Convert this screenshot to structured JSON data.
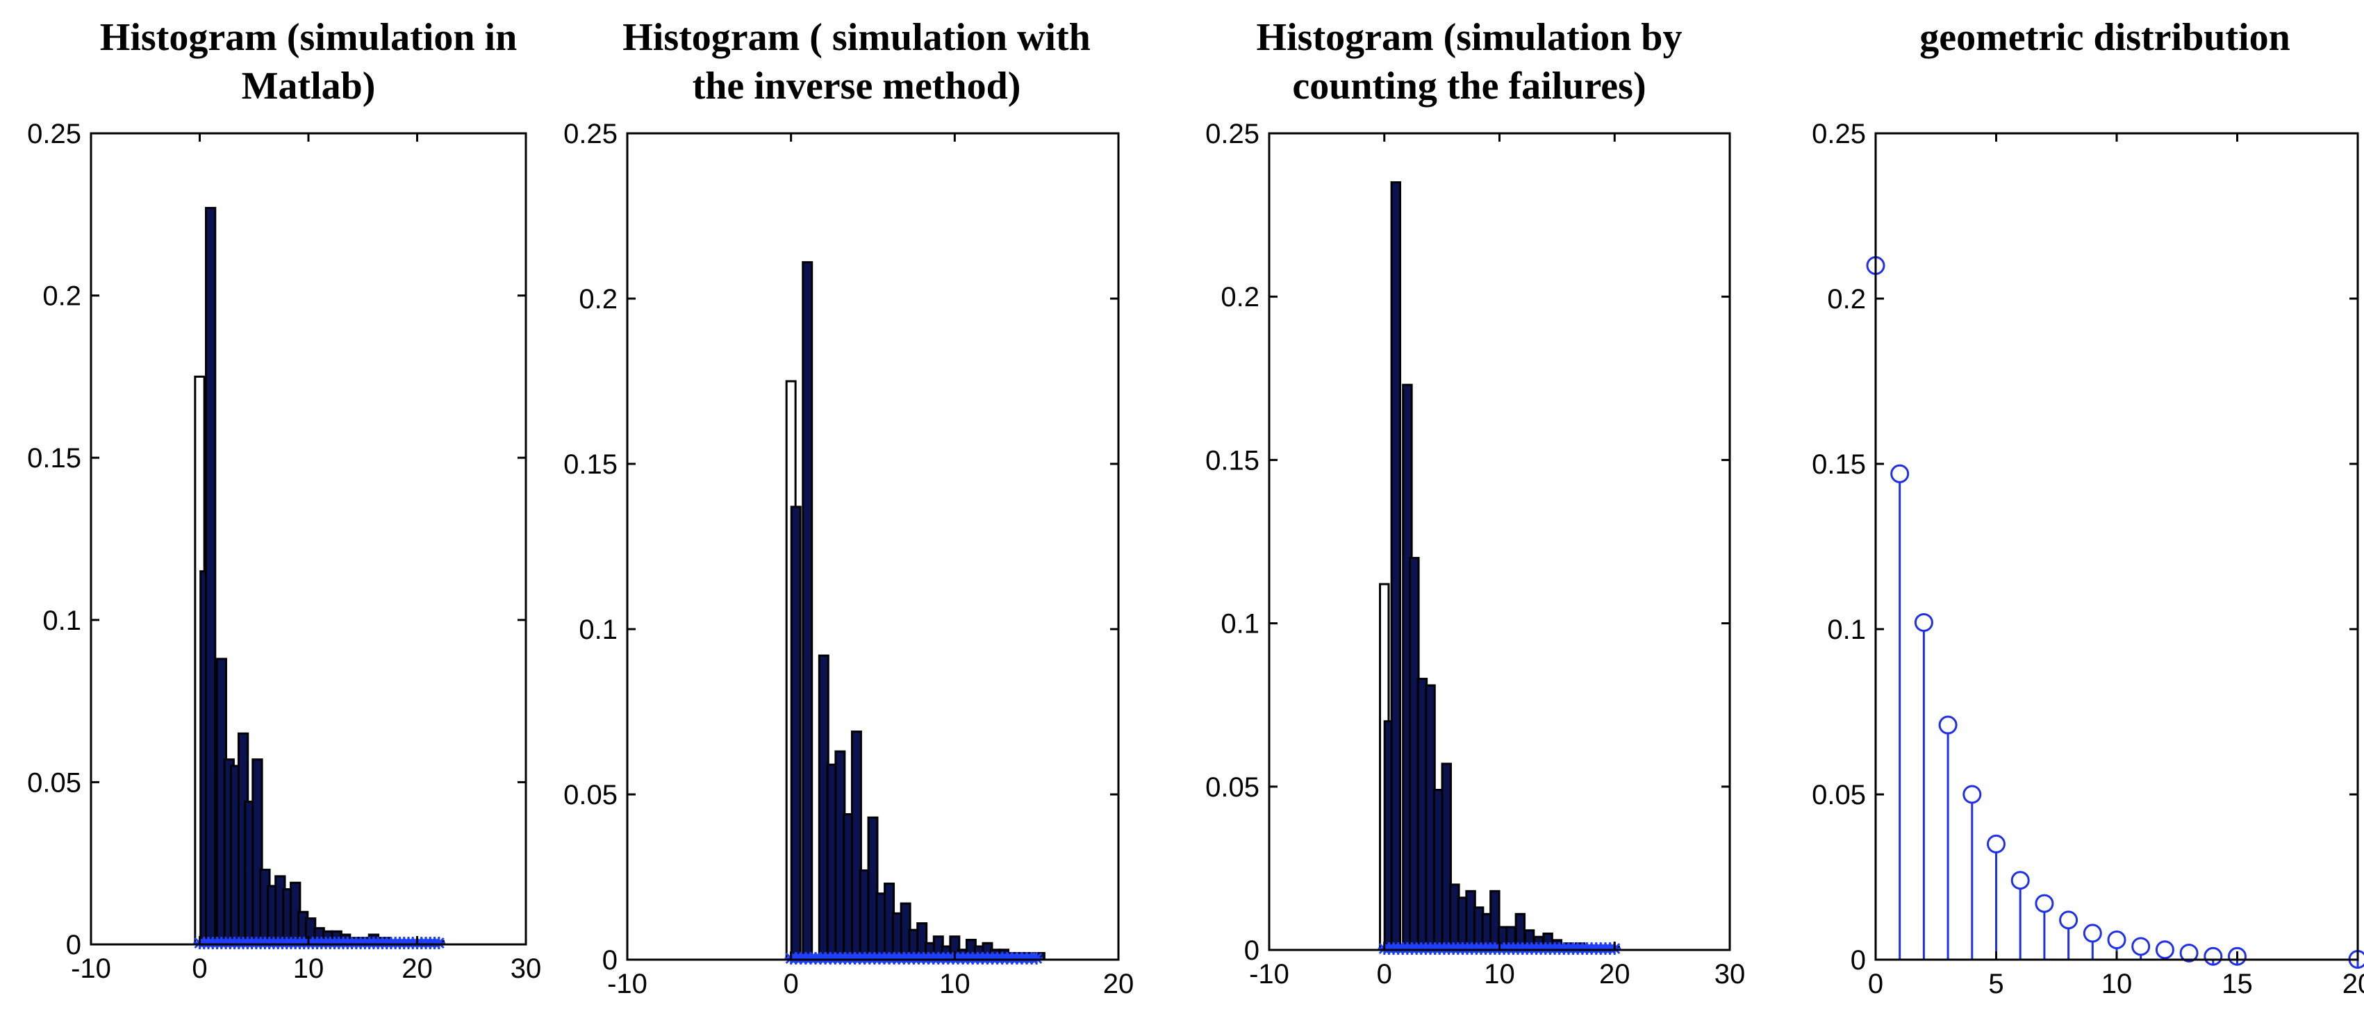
{
  "chart_data": [
    {
      "type": "bar",
      "title": [
        "Histogram (simulation in",
        "Matlab)"
      ],
      "xlim": [
        -10,
        30
      ],
      "ylim": [
        0,
        0.25
      ],
      "xticks": [
        -10,
        0,
        10,
        20,
        30
      ],
      "yticks": [
        0,
        0.05,
        0.1,
        0.15,
        0.2,
        0.25
      ],
      "bar_width": 0.85,
      "bars": [
        {
          "x": 0.0,
          "y": 0.175,
          "color": "#ffffff"
        },
        {
          "x": 0.5,
          "y": 0.115,
          "color": "#0a1250"
        },
        {
          "x": 1.0,
          "y": 0.227,
          "color": "#0a1250"
        },
        {
          "x": 2.0,
          "y": 0.088,
          "color": "#0a1250"
        },
        {
          "x": 2.7,
          "y": 0.057,
          "color": "#0a1250"
        },
        {
          "x": 3.3,
          "y": 0.055,
          "color": "#0a1250"
        },
        {
          "x": 4.0,
          "y": 0.065,
          "color": "#0a1250"
        },
        {
          "x": 4.6,
          "y": 0.044,
          "color": "#0a1250"
        },
        {
          "x": 5.3,
          "y": 0.057,
          "color": "#0a1250"
        },
        {
          "x": 6.0,
          "y": 0.023,
          "color": "#0a1250"
        },
        {
          "x": 6.7,
          "y": 0.018,
          "color": "#0a1250"
        },
        {
          "x": 7.4,
          "y": 0.021,
          "color": "#0a1250"
        },
        {
          "x": 8.1,
          "y": 0.017,
          "color": "#0a1250"
        },
        {
          "x": 8.8,
          "y": 0.019,
          "color": "#0a1250"
        },
        {
          "x": 9.5,
          "y": 0.01,
          "color": "#0a1250"
        },
        {
          "x": 10.2,
          "y": 0.008,
          "color": "#0a1250"
        },
        {
          "x": 11.0,
          "y": 0.005,
          "color": "#0a1250"
        },
        {
          "x": 11.8,
          "y": 0.004,
          "color": "#0a1250"
        },
        {
          "x": 12.6,
          "y": 0.004,
          "color": "#0a1250"
        },
        {
          "x": 13.4,
          "y": 0.003,
          "color": "#0a1250"
        },
        {
          "x": 14.2,
          "y": 0.002,
          "color": "#0a1250"
        },
        {
          "x": 15.0,
          "y": 0.002,
          "color": "#0a1250"
        },
        {
          "x": 16.0,
          "y": 0.003,
          "color": "#0a1250"
        },
        {
          "x": 17.0,
          "y": 0.002,
          "color": "#0a1250"
        },
        {
          "x": 18.0,
          "y": 0.001,
          "color": "#0a1250"
        },
        {
          "x": 19.0,
          "y": 0.001,
          "color": "#0a1250"
        },
        {
          "x": 20.0,
          "y": 0.001,
          "color": "#0a1250"
        },
        {
          "x": 21.0,
          "y": 0.001,
          "color": "#0a1250"
        },
        {
          "x": 22.0,
          "y": 0.001,
          "color": "#0a1250"
        }
      ],
      "markers": {
        "type": "star",
        "color": "#2040ff",
        "from": 0,
        "to": 22,
        "step": 0.4,
        "y": 0
      }
    },
    {
      "type": "bar",
      "title": [
        "Histogram ( simulation with",
        "the inverse method)"
      ],
      "xlim": [
        -10,
        20
      ],
      "ylim": [
        0,
        0.25
      ],
      "xticks": [
        -10,
        0,
        10,
        20
      ],
      "yticks": [
        0,
        0.05,
        0.1,
        0.15,
        0.2,
        0.25
      ],
      "bar_width": 0.55,
      "bars": [
        {
          "x": 0.0,
          "y": 0.175,
          "color": "#ffffff"
        },
        {
          "x": 0.3,
          "y": 0.137,
          "color": "#0a1250"
        },
        {
          "x": 1.0,
          "y": 0.211,
          "color": "#0a1250"
        },
        {
          "x": 2.0,
          "y": 0.092,
          "color": "#0a1250"
        },
        {
          "x": 2.5,
          "y": 0.059,
          "color": "#0a1250"
        },
        {
          "x": 3.0,
          "y": 0.063,
          "color": "#0a1250"
        },
        {
          "x": 3.5,
          "y": 0.044,
          "color": "#0a1250"
        },
        {
          "x": 4.0,
          "y": 0.069,
          "color": "#0a1250"
        },
        {
          "x": 4.5,
          "y": 0.027,
          "color": "#0a1250"
        },
        {
          "x": 5.0,
          "y": 0.043,
          "color": "#0a1250"
        },
        {
          "x": 5.5,
          "y": 0.02,
          "color": "#0a1250"
        },
        {
          "x": 6.0,
          "y": 0.023,
          "color": "#0a1250"
        },
        {
          "x": 6.5,
          "y": 0.014,
          "color": "#0a1250"
        },
        {
          "x": 7.0,
          "y": 0.017,
          "color": "#0a1250"
        },
        {
          "x": 7.5,
          "y": 0.009,
          "color": "#0a1250"
        },
        {
          "x": 8.0,
          "y": 0.011,
          "color": "#0a1250"
        },
        {
          "x": 8.5,
          "y": 0.005,
          "color": "#0a1250"
        },
        {
          "x": 9.0,
          "y": 0.007,
          "color": "#0a1250"
        },
        {
          "x": 9.5,
          "y": 0.004,
          "color": "#0a1250"
        },
        {
          "x": 10.0,
          "y": 0.007,
          "color": "#0a1250"
        },
        {
          "x": 10.5,
          "y": 0.003,
          "color": "#0a1250"
        },
        {
          "x": 11.0,
          "y": 0.006,
          "color": "#0a1250"
        },
        {
          "x": 11.5,
          "y": 0.004,
          "color": "#0a1250"
        },
        {
          "x": 12.0,
          "y": 0.005,
          "color": "#0a1250"
        },
        {
          "x": 12.5,
          "y": 0.003,
          "color": "#0a1250"
        },
        {
          "x": 13.0,
          "y": 0.003,
          "color": "#0a1250"
        },
        {
          "x": 13.5,
          "y": 0.002,
          "color": "#0a1250"
        },
        {
          "x": 14.0,
          "y": 0.002,
          "color": "#0a1250"
        },
        {
          "x": 14.5,
          "y": 0.002,
          "color": "#0a1250"
        },
        {
          "x": 15.2,
          "y": 0.002,
          "color": "#0a1250"
        }
      ],
      "markers": {
        "type": "star",
        "color": "#2040ff",
        "from": 0,
        "to": 15.2,
        "step": 0.3,
        "y": 0
      }
    },
    {
      "type": "bar",
      "title": [
        "Histogram (simulation by",
        "counting the failures)"
      ],
      "xlim": [
        -10,
        30
      ],
      "ylim": [
        0,
        0.25
      ],
      "xticks": [
        -10,
        0,
        10,
        20,
        30
      ],
      "yticks": [
        0,
        0.05,
        0.1,
        0.15,
        0.2,
        0.25
      ],
      "bar_width": 0.75,
      "bars": [
        {
          "x": 0.0,
          "y": 0.112,
          "color": "#ffffff"
        },
        {
          "x": 0.4,
          "y": 0.07,
          "color": "#0a1250"
        },
        {
          "x": 1.0,
          "y": 0.235,
          "color": "#0a1250"
        },
        {
          "x": 2.0,
          "y": 0.173,
          "color": "#0a1250"
        },
        {
          "x": 2.6,
          "y": 0.12,
          "color": "#0a1250"
        },
        {
          "x": 3.3,
          "y": 0.083,
          "color": "#0a1250"
        },
        {
          "x": 4.0,
          "y": 0.081,
          "color": "#0a1250"
        },
        {
          "x": 4.7,
          "y": 0.049,
          "color": "#0a1250"
        },
        {
          "x": 5.4,
          "y": 0.057,
          "color": "#0a1250"
        },
        {
          "x": 6.1,
          "y": 0.02,
          "color": "#0a1250"
        },
        {
          "x": 6.8,
          "y": 0.016,
          "color": "#0a1250"
        },
        {
          "x": 7.5,
          "y": 0.018,
          "color": "#0a1250"
        },
        {
          "x": 8.2,
          "y": 0.013,
          "color": "#0a1250"
        },
        {
          "x": 8.9,
          "y": 0.011,
          "color": "#0a1250"
        },
        {
          "x": 9.6,
          "y": 0.018,
          "color": "#0a1250"
        },
        {
          "x": 10.3,
          "y": 0.007,
          "color": "#0a1250"
        },
        {
          "x": 11.0,
          "y": 0.007,
          "color": "#0a1250"
        },
        {
          "x": 11.8,
          "y": 0.011,
          "color": "#0a1250"
        },
        {
          "x": 12.6,
          "y": 0.006,
          "color": "#0a1250"
        },
        {
          "x": 13.4,
          "y": 0.004,
          "color": "#0a1250"
        },
        {
          "x": 14.2,
          "y": 0.005,
          "color": "#0a1250"
        },
        {
          "x": 15.0,
          "y": 0.003,
          "color": "#0a1250"
        },
        {
          "x": 16.0,
          "y": 0.002,
          "color": "#0a1250"
        },
        {
          "x": 17.0,
          "y": 0.002,
          "color": "#0a1250"
        },
        {
          "x": 18.0,
          "y": 0.001,
          "color": "#0a1250"
        },
        {
          "x": 19.0,
          "y": 0.001,
          "color": "#0a1250"
        },
        {
          "x": 20.0,
          "y": 0.001,
          "color": "#0a1250"
        }
      ],
      "markers": {
        "type": "star",
        "color": "#2040ff",
        "from": 0,
        "to": 20.2,
        "step": 0.4,
        "y": 0
      }
    },
    {
      "type": "stem",
      "title": [
        "geometric distribution"
      ],
      "xlim": [
        0,
        20
      ],
      "ylim": [
        0,
        0.25
      ],
      "xticks": [
        0,
        5,
        10,
        15,
        20
      ],
      "yticks": [
        0,
        0.05,
        0.1,
        0.15,
        0.2,
        0.25
      ],
      "color": "#2030e8",
      "x": [
        0,
        1,
        2,
        3,
        4,
        5,
        6,
        7,
        8,
        9,
        10,
        11,
        12,
        13,
        14,
        15,
        20
      ],
      "y": [
        0.21,
        0.147,
        0.102,
        0.071,
        0.05,
        0.035,
        0.024,
        0.017,
        0.012,
        0.008,
        0.006,
        0.004,
        0.003,
        0.002,
        0.001,
        0.001,
        0.0001
      ]
    }
  ]
}
